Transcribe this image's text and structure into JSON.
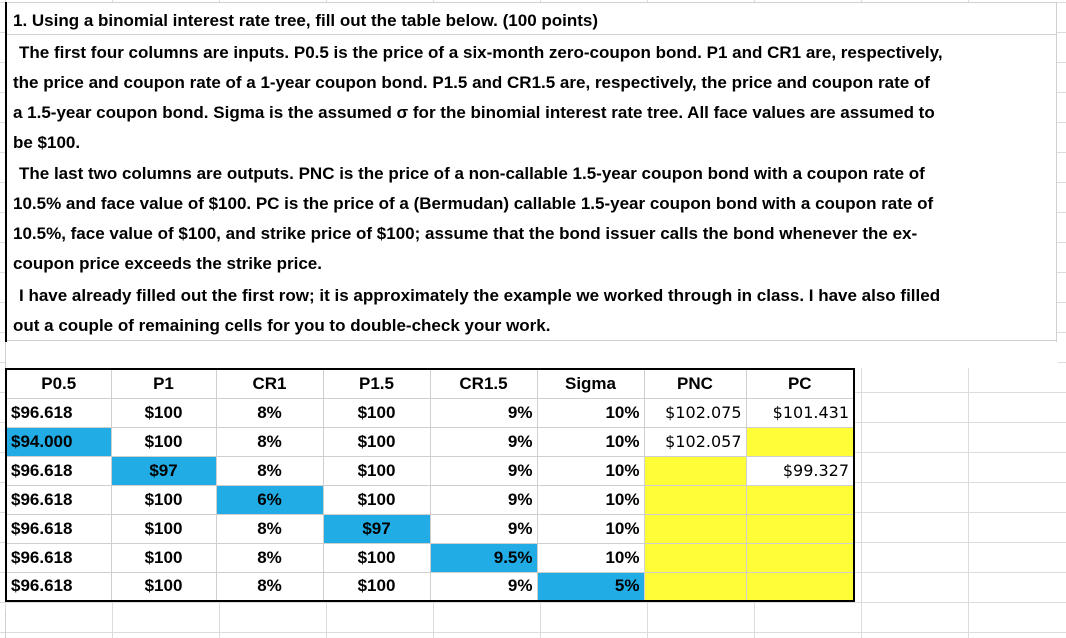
{
  "prompt": {
    "lines": [
      "1. Using a binomial interest rate tree, fill out the table below. (100 points)",
      "The first four columns are inputs. P0.5 is the price of a six-month zero-coupon bond. P1 and CR1 are, respectively,",
      "the price and coupon rate of a 1-year coupon bond. P1.5 and CR1.5 are, respectively, the price and coupon rate of",
      "a 1.5-year coupon bond. Sigma is the assumed σ for the binomial interest rate tree. All face values are assumed to",
      "be $100.",
      "The last two columns are outputs. PNC is the price of a non-callable 1.5-year coupon bond with a coupon rate of",
      "10.5% and face value of $100. PC is the price of a (Bermudan) callable 1.5-year coupon bond with a coupon rate of",
      "10.5%, face value of $100, and strike price of $100; assume that the bond issuer calls the bond whenever the ex-",
      "coupon price exceeds the strike price.",
      "I have already filled out the first row; it is approximately the example we worked through in class. I have also filled",
      "out a couple of remaining cells for you to double-check your work."
    ]
  },
  "table": {
    "headers": [
      "P0.5",
      "P1",
      "CR1",
      "P1.5",
      "CR1.5",
      "Sigma",
      "PNC",
      "PC"
    ],
    "rows": [
      [
        "$96.618",
        "$100",
        "8%",
        "$100",
        "9%",
        "10%",
        "$102.075",
        "$101.431"
      ],
      [
        "$94.000",
        "$100",
        "8%",
        "$100",
        "9%",
        "10%",
        "$102.057",
        ""
      ],
      [
        "$96.618",
        "$97",
        "8%",
        "$100",
        "9%",
        "10%",
        "",
        "$99.327"
      ],
      [
        "$96.618",
        "$100",
        "6%",
        "$100",
        "9%",
        "10%",
        "",
        ""
      ],
      [
        "$96.618",
        "$100",
        "8%",
        "$97",
        "9%",
        "10%",
        "",
        ""
      ],
      [
        "$96.618",
        "$100",
        "8%",
        "$100",
        "9.5%",
        "10%",
        "",
        ""
      ],
      [
        "$96.618",
        "$100",
        "8%",
        "$100",
        "9%",
        "5%",
        "",
        ""
      ]
    ]
  },
  "colors": {
    "changed_input": "#21ace6",
    "to_fill": "#fffd38"
  }
}
